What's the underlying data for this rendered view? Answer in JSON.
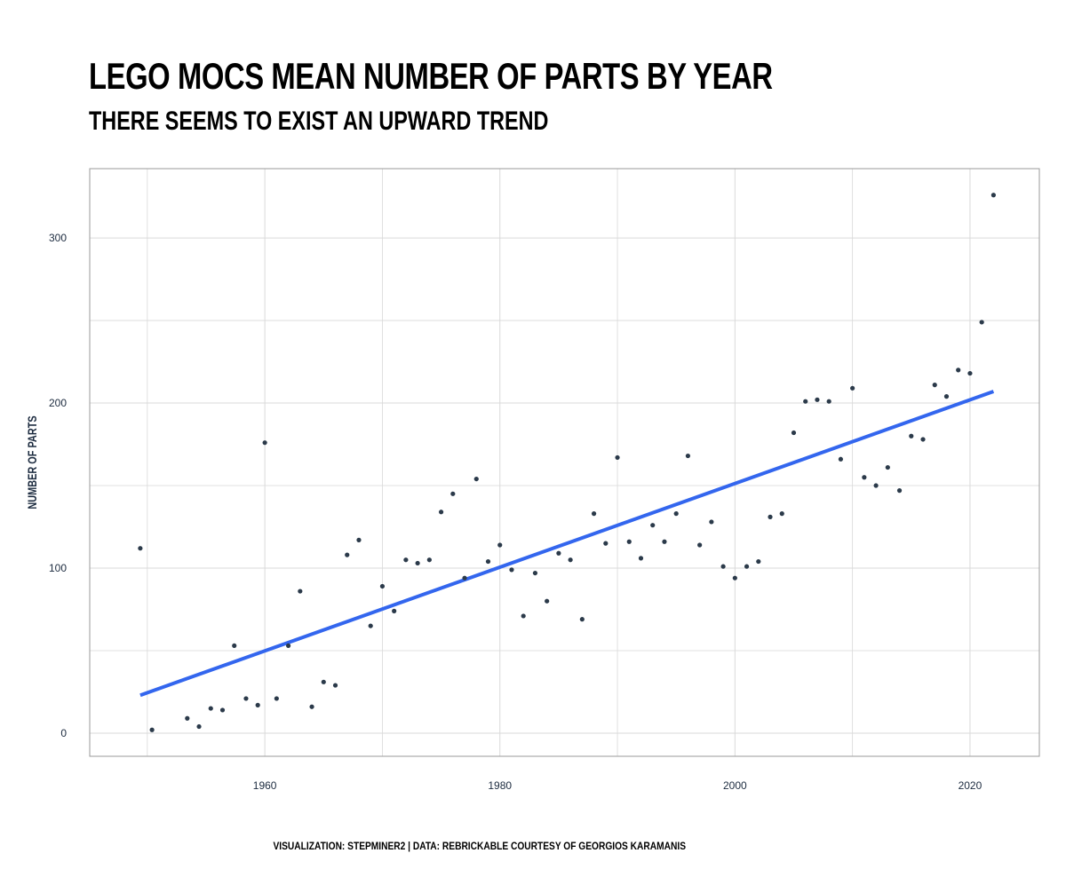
{
  "chart_data": {
    "type": "scatter",
    "title": "LEGO MOCS MEAN NUMBER OF PARTS BY YEAR",
    "subtitle": "THERE SEEMS TO EXIST AN UPWARD TREND",
    "xlabel": "",
    "ylabel": "NUMBER OF PARTS",
    "caption": "VISUALIZATION: STEPMINER2 | DATA: REBRICKABLE COURTESY OF GEORGIOS KARAMANIS",
    "xlim": [
      1945.1,
      2025.9
    ],
    "ylim": [
      -14,
      342
    ],
    "xticks": [
      1960,
      1980,
      2000,
      2020
    ],
    "yticks": [
      0,
      100,
      200,
      300
    ],
    "x_minor_gridlines": [
      1950,
      1970,
      1990,
      2010
    ],
    "y_minor_gridlines": [
      50,
      150,
      250
    ],
    "grid": true,
    "point_color": "#2b3a4a",
    "trend_color": "#3366ee",
    "frame_color": "#9a9a9a",
    "grid_color": "#d9d9d9",
    "trend_line": {
      "x": [
        1949.4,
        2022
      ],
      "y": [
        23,
        207
      ]
    },
    "points": [
      {
        "x": 1949.4,
        "y": 112
      },
      {
        "x": 1950.4,
        "y": 2
      },
      {
        "x": 1953.4,
        "y": 9
      },
      {
        "x": 1954.4,
        "y": 4
      },
      {
        "x": 1955.4,
        "y": 15
      },
      {
        "x": 1956.4,
        "y": 14
      },
      {
        "x": 1957.4,
        "y": 53
      },
      {
        "x": 1958.4,
        "y": 21
      },
      {
        "x": 1959.4,
        "y": 17
      },
      {
        "x": 1960,
        "y": 176
      },
      {
        "x": 1961,
        "y": 21
      },
      {
        "x": 1962,
        "y": 53
      },
      {
        "x": 1963,
        "y": 86
      },
      {
        "x": 1964,
        "y": 16
      },
      {
        "x": 1965,
        "y": 31
      },
      {
        "x": 1966,
        "y": 29
      },
      {
        "x": 1967,
        "y": 108
      },
      {
        "x": 1968,
        "y": 117
      },
      {
        "x": 1969,
        "y": 65
      },
      {
        "x": 1970,
        "y": 89
      },
      {
        "x": 1971,
        "y": 74
      },
      {
        "x": 1972,
        "y": 105
      },
      {
        "x": 1973,
        "y": 103
      },
      {
        "x": 1974,
        "y": 105
      },
      {
        "x": 1975,
        "y": 134
      },
      {
        "x": 1976,
        "y": 145
      },
      {
        "x": 1977,
        "y": 94
      },
      {
        "x": 1978,
        "y": 154
      },
      {
        "x": 1979,
        "y": 104
      },
      {
        "x": 1980,
        "y": 114
      },
      {
        "x": 1981,
        "y": 99
      },
      {
        "x": 1982,
        "y": 71
      },
      {
        "x": 1983,
        "y": 97
      },
      {
        "x": 1984,
        "y": 80
      },
      {
        "x": 1985,
        "y": 109
      },
      {
        "x": 1986,
        "y": 105
      },
      {
        "x": 1987,
        "y": 69
      },
      {
        "x": 1988,
        "y": 133
      },
      {
        "x": 1989,
        "y": 115
      },
      {
        "x": 1990,
        "y": 167
      },
      {
        "x": 1991,
        "y": 116
      },
      {
        "x": 1992,
        "y": 106
      },
      {
        "x": 1993,
        "y": 126
      },
      {
        "x": 1994,
        "y": 116
      },
      {
        "x": 1995,
        "y": 133
      },
      {
        "x": 1996,
        "y": 168
      },
      {
        "x": 1997,
        "y": 114
      },
      {
        "x": 1998,
        "y": 128
      },
      {
        "x": 1999,
        "y": 101
      },
      {
        "x": 2000,
        "y": 94
      },
      {
        "x": 2001,
        "y": 101
      },
      {
        "x": 2002,
        "y": 104
      },
      {
        "x": 2003,
        "y": 131
      },
      {
        "x": 2004,
        "y": 133
      },
      {
        "x": 2005,
        "y": 182
      },
      {
        "x": 2006,
        "y": 201
      },
      {
        "x": 2007,
        "y": 202
      },
      {
        "x": 2008,
        "y": 201
      },
      {
        "x": 2009,
        "y": 166
      },
      {
        "x": 2010,
        "y": 209
      },
      {
        "x": 2011,
        "y": 155
      },
      {
        "x": 2012,
        "y": 150
      },
      {
        "x": 2013,
        "y": 161
      },
      {
        "x": 2014,
        "y": 147
      },
      {
        "x": 2015,
        "y": 180
      },
      {
        "x": 2016,
        "y": 178
      },
      {
        "x": 2017,
        "y": 211
      },
      {
        "x": 2018,
        "y": 204
      },
      {
        "x": 2019,
        "y": 220
      },
      {
        "x": 2020,
        "y": 218
      },
      {
        "x": 2021,
        "y": 249
      },
      {
        "x": 2022,
        "y": 326
      }
    ]
  }
}
